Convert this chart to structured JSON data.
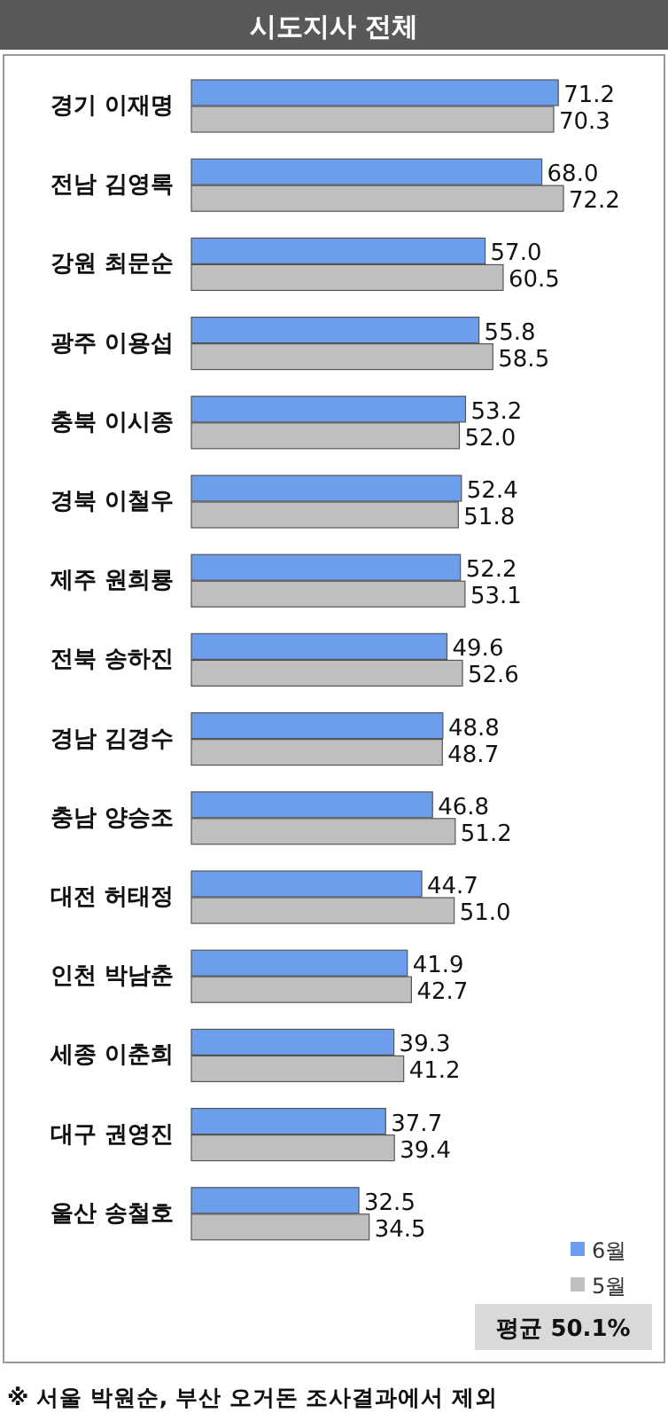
{
  "chart_data": {
    "type": "bar",
    "orientation": "horizontal",
    "title": "시도지사 전체",
    "categories": [
      "경기 이재명",
      "전남 김영록",
      "강원 최문순",
      "광주 이용섭",
      "충북 이시종",
      "경북 이철우",
      "제주 원희룡",
      "전북 송하진",
      "경남 김경수",
      "충남 양승조",
      "대전 허태정",
      "인천 박남춘",
      "세종 이춘희",
      "대구 권영진",
      "울산 송철호"
    ],
    "series": [
      {
        "name": "6월",
        "color": "#6d9eeb",
        "values": [
          71.2,
          68.0,
          57.0,
          55.8,
          53.2,
          52.4,
          52.2,
          49.6,
          48.8,
          46.8,
          44.7,
          41.9,
          39.3,
          37.7,
          32.5
        ],
        "value_labels": [
          "71.2",
          "68.0",
          "57.0",
          "55.8",
          "53.2",
          "52.4",
          "52.2",
          "49.6",
          "48.8",
          "46.8",
          "44.7",
          "41.9",
          "39.3",
          "37.7",
          "32.5"
        ]
      },
      {
        "name": "5월",
        "color": "#bfbfbf",
        "values": [
          70.3,
          72.2,
          60.5,
          58.5,
          52.0,
          51.8,
          53.1,
          52.6,
          48.7,
          51.2,
          51.0,
          42.7,
          41.2,
          39.4,
          34.5
        ],
        "value_labels": [
          "70.3",
          "72.2",
          "60.5",
          "58.5",
          "52.0",
          "51.8",
          "53.1",
          "52.6",
          "48.7",
          "51.2",
          "51.0",
          "42.7",
          "41.2",
          "39.4",
          "34.5"
        ]
      }
    ],
    "legend": "bottom right",
    "annotations": [
      "평균 50.1%",
      "※ 서울 박원순, 부산 오거돈 조사결과에서 제외"
    ]
  }
}
